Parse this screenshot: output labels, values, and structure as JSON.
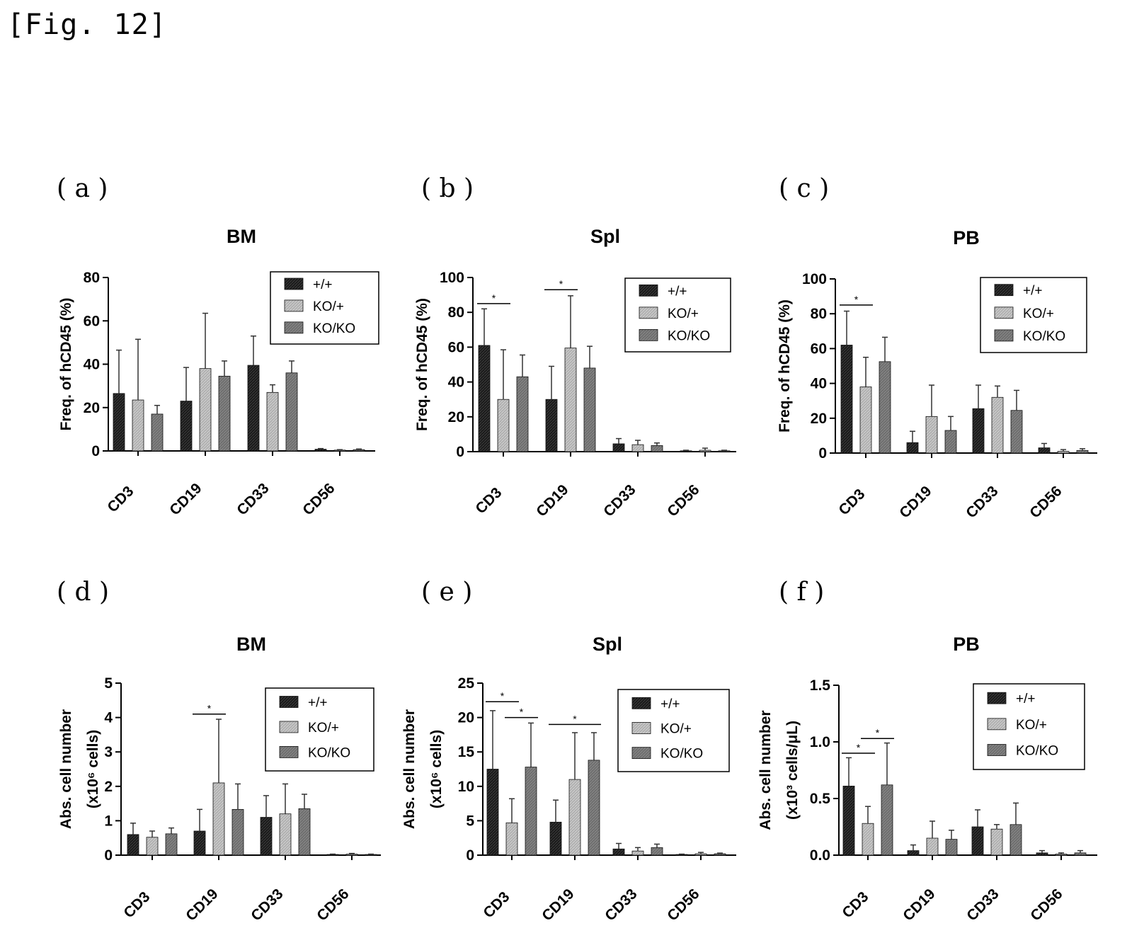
{
  "figure_label": "[Fig. 12]",
  "legend_labels": [
    "+/+",
    "KO/+",
    "KO/KO"
  ],
  "colors": {
    "wt": "#1a1a1a",
    "het": "#b0b0b0",
    "ko": "#6e6e6e",
    "axis": "#000000"
  },
  "chart_data": [
    {
      "panel": "( a )",
      "type": "bar",
      "title": "BM",
      "ylabel": "Freq. of hCD45 (%)",
      "ylabel2": "",
      "yticks": [
        "0",
        "20",
        "40",
        "60",
        "80"
      ],
      "ylim": [
        0,
        80
      ],
      "categories": [
        "CD3",
        "CD19",
        "CD33",
        "CD56"
      ],
      "series": [
        {
          "name": "+/+",
          "values": [
            26.5,
            23,
            39.5,
            0.8
          ],
          "errors": [
            20,
            15.5,
            13.5,
            0.3
          ]
        },
        {
          "name": "KO/+",
          "values": [
            23.5,
            38,
            27,
            0.4
          ],
          "errors": [
            28,
            25.5,
            3.5,
            0.2
          ]
        },
        {
          "name": "KO/KO",
          "values": [
            17,
            34.5,
            36,
            0.6
          ],
          "errors": [
            4,
            7,
            5.5,
            0.3
          ]
        }
      ],
      "significance": []
    },
    {
      "panel": "( b )",
      "type": "bar",
      "title": "Spl",
      "ylabel": "Freq. of hCD45 (%)",
      "ylabel2": "",
      "yticks": [
        "0",
        "20",
        "40",
        "60",
        "80",
        "100"
      ],
      "ylim": [
        0,
        100
      ],
      "categories": [
        "CD3",
        "CD19",
        "CD33",
        "CD56"
      ],
      "series": [
        {
          "name": "+/+",
          "values": [
            61,
            30,
            4.5,
            0.5
          ],
          "errors": [
            21,
            19,
            3,
            0.3
          ]
        },
        {
          "name": "KO/+",
          "values": [
            30,
            59.5,
            4,
            0.8
          ],
          "errors": [
            28.5,
            30,
            2.5,
            1.2
          ]
        },
        {
          "name": "KO/KO",
          "values": [
            43,
            48,
            3.5,
            0.5
          ],
          "errors": [
            12.5,
            12.5,
            1.5,
            0.3
          ]
        }
      ],
      "significance": [
        {
          "group": 0,
          "from": 0,
          "to": 1,
          "label": "*",
          "y": 85
        },
        {
          "group": 1,
          "from": 0,
          "to": 1,
          "label": "*",
          "y": 93
        }
      ]
    },
    {
      "panel": "( c )",
      "type": "bar",
      "title": "PB",
      "ylabel": "Freq. of hCD45 (%)",
      "ylabel2": "",
      "yticks": [
        "0",
        "20",
        "40",
        "60",
        "80",
        "100"
      ],
      "ylim": [
        0,
        100
      ],
      "categories": [
        "CD3",
        "CD19",
        "CD33",
        "CD56"
      ],
      "series": [
        {
          "name": "+/+",
          "values": [
            62,
            6,
            25.5,
            3
          ],
          "errors": [
            19.5,
            6.5,
            13.5,
            2.5
          ]
        },
        {
          "name": "KO/+",
          "values": [
            38,
            21,
            32,
            1
          ],
          "errors": [
            17,
            18,
            6.5,
            1
          ]
        },
        {
          "name": "KO/KO",
          "values": [
            52.5,
            13,
            24.5,
            1.5
          ],
          "errors": [
            14,
            8,
            11.5,
            1
          ]
        }
      ],
      "significance": [
        {
          "group": 0,
          "from": 0,
          "to": 1,
          "label": "*",
          "y": 85
        }
      ]
    },
    {
      "panel": "( d )",
      "type": "bar",
      "title": "BM",
      "ylabel": "Abs. cell number",
      "ylabel2": "(x10⁶ cells)",
      "yticks": [
        "0",
        "1",
        "2",
        "3",
        "4",
        "5"
      ],
      "ylim": [
        0,
        5
      ],
      "categories": [
        "CD3",
        "CD19",
        "CD33",
        "CD56"
      ],
      "series": [
        {
          "name": "+/+",
          "values": [
            0.6,
            0.7,
            1.1,
            0.02
          ],
          "errors": [
            0.33,
            0.63,
            0.63,
            0.01
          ]
        },
        {
          "name": "KO/+",
          "values": [
            0.52,
            2.1,
            1.2,
            0.03
          ],
          "errors": [
            0.18,
            1.85,
            0.87,
            0.02
          ]
        },
        {
          "name": "KO/KO",
          "values": [
            0.62,
            1.33,
            1.35,
            0.02
          ],
          "errors": [
            0.17,
            0.74,
            0.42,
            0.01
          ]
        }
      ],
      "significance": [
        {
          "group": 1,
          "from": 0,
          "to": 1,
          "label": "*",
          "y": 4.1
        }
      ]
    },
    {
      "panel": "( e )",
      "type": "bar",
      "title": "Spl",
      "ylabel": "Abs. cell number",
      "ylabel2": "(x10⁶ cells)",
      "yticks": [
        "0",
        "5",
        "10",
        "15",
        "20",
        "25"
      ],
      "ylim": [
        0,
        25
      ],
      "categories": [
        "CD3",
        "CD19",
        "CD33",
        "CD56"
      ],
      "series": [
        {
          "name": "+/+",
          "values": [
            12.5,
            4.8,
            0.9,
            0.1
          ],
          "errors": [
            8.5,
            3.2,
            0.8,
            0.05
          ]
        },
        {
          "name": "KO/+",
          "values": [
            4.7,
            11,
            0.6,
            0.2
          ],
          "errors": [
            3.5,
            6.8,
            0.5,
            0.2
          ]
        },
        {
          "name": "KO/KO",
          "values": [
            12.8,
            13.8,
            1.1,
            0.2
          ],
          "errors": [
            6.4,
            4,
            0.5,
            0.1
          ]
        }
      ],
      "significance": [
        {
          "group": 0,
          "from": 0,
          "to": 1,
          "label": "*",
          "y": 22.3
        },
        {
          "group": 0,
          "from": 1,
          "to": 2,
          "label": "*",
          "y": 20
        },
        {
          "group": 1,
          "from": 0,
          "to": 2,
          "label": "*",
          "y": 19
        }
      ]
    },
    {
      "panel": "( f )",
      "type": "bar",
      "title": "PB",
      "ylabel": "Abs. cell number",
      "ylabel2": "(x10³ cells/μL)",
      "yticks": [
        "0.0",
        "0.5",
        "1.0",
        "1.5"
      ],
      "ylim": [
        0,
        1.5
      ],
      "categories": [
        "CD3",
        "CD19",
        "CD33",
        "CD56"
      ],
      "series": [
        {
          "name": "+/+",
          "values": [
            0.61,
            0.04,
            0.25,
            0.02
          ],
          "errors": [
            0.25,
            0.05,
            0.15,
            0.02
          ]
        },
        {
          "name": "KO/+",
          "values": [
            0.28,
            0.15,
            0.23,
            0.01
          ],
          "errors": [
            0.15,
            0.15,
            0.04,
            0.01
          ]
        },
        {
          "name": "KO/KO",
          "values": [
            0.62,
            0.14,
            0.27,
            0.02
          ],
          "errors": [
            0.37,
            0.08,
            0.19,
            0.02
          ]
        }
      ],
      "significance": [
        {
          "group": 0,
          "from": 0,
          "to": 1,
          "label": "*",
          "y": 0.9
        },
        {
          "group": 0,
          "from": 1,
          "to": 2,
          "label": "*",
          "y": 1.03
        }
      ]
    }
  ]
}
